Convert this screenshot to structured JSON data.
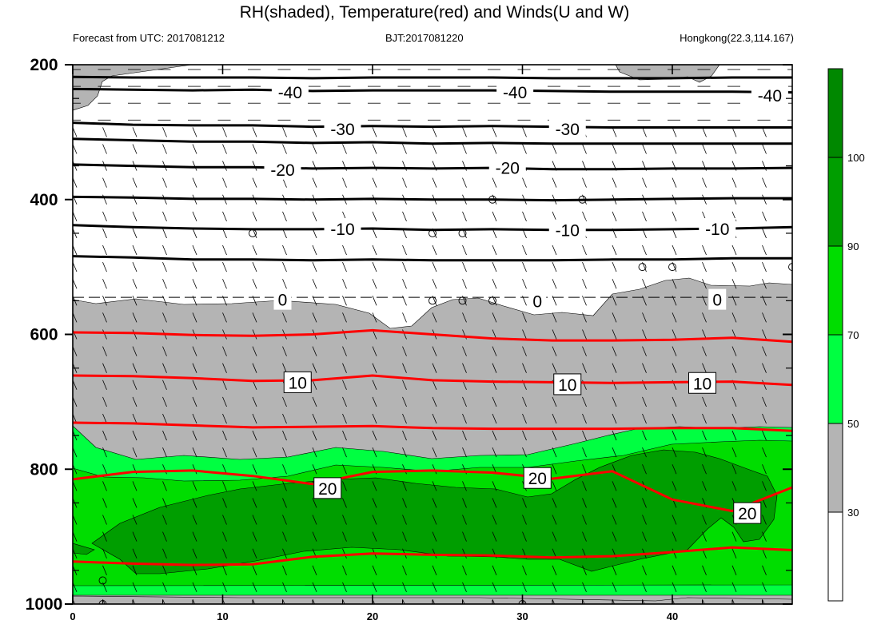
{
  "header": {
    "title": "RH(shaded), Temperature(red) and Winds(U and W)",
    "left_string": "Forecast from UTC: 2017081212",
    "center_string": "BJT:2017081220",
    "right_string": "Hongkong(22.3,114.167)"
  },
  "colors": {
    "temperature_warm": "#ff0000",
    "temperature_cold": "#000000",
    "rh_30_50": "#b4b4b4",
    "rh_50_70": "#00ff41",
    "rh_70_90": "#00dd00",
    "rh_90_100": "#009e00",
    "rh_100_plus": "#008800",
    "rh_below_30": "#ffffff"
  },
  "chart_data": {
    "type": "contour",
    "title": "RH(shaded), Temperature(red) and Winds(U and W)",
    "x_ticks": [
      0,
      10,
      20,
      30,
      40
    ],
    "xlim": [
      0,
      48
    ],
    "y_ticks": [
      200,
      400,
      600,
      800,
      1000
    ],
    "ylim": [
      1000,
      200
    ],
    "colorbar": {
      "levels": [
        30,
        50,
        70,
        90,
        100
      ],
      "colors": [
        "#ffffff",
        "#b4b4b4",
        "#00ff41",
        "#00dd00",
        "#009e00",
        "#008800"
      ]
    },
    "temperature_labels": [
      {
        "text": "-40",
        "x": 14.5,
        "p": 240
      },
      {
        "text": "-40",
        "x": 29.5,
        "p": 240
      },
      {
        "text": "-40",
        "x": 46.5,
        "p": 245
      },
      {
        "text": "-30",
        "x": 18,
        "p": 295
      },
      {
        "text": "-30",
        "x": 33,
        "p": 295
      },
      {
        "text": "-20",
        "x": 14,
        "p": 355
      },
      {
        "text": "-20",
        "x": 29,
        "p": 352
      },
      {
        "text": "-10",
        "x": 18,
        "p": 443
      },
      {
        "text": "-10",
        "x": 33,
        "p": 445
      },
      {
        "text": "-10",
        "x": 43,
        "p": 443
      },
      {
        "text": "0",
        "x": 14,
        "p": 548
      },
      {
        "text": "0",
        "x": 31,
        "p": 550
      },
      {
        "text": "0",
        "x": 43,
        "p": 548
      },
      {
        "text": "10",
        "x": 15,
        "p": 671
      },
      {
        "text": "10",
        "x": 33,
        "p": 674
      },
      {
        "text": "10",
        "x": 42,
        "p": 672
      },
      {
        "text": "20",
        "x": 17,
        "p": 828
      },
      {
        "text": "20",
        "x": 31,
        "p": 813
      },
      {
        "text": "20",
        "x": 45,
        "p": 865
      }
    ],
    "temperature_contours": [
      {
        "value": -40,
        "p": [
          218,
          219,
          219,
          219,
          220,
          219,
          219,
          219,
          220,
          220,
          220,
          219,
          219
        ]
      },
      {
        "value": -40,
        "p": [
          236,
          237,
          238,
          237,
          239,
          238,
          238,
          238,
          239,
          240,
          240,
          240,
          241
        ]
      },
      {
        "value": -30,
        "p": [
          286,
          289,
          290,
          290,
          292,
          291,
          292,
          291,
          292,
          293,
          293,
          293,
          293
        ]
      },
      {
        "value": -30,
        "p": [
          310,
          312,
          314,
          314,
          316,
          315,
          317,
          316,
          317,
          317,
          317,
          317,
          317
        ]
      },
      {
        "value": -20,
        "p": [
          348,
          350,
          352,
          352,
          354,
          353,
          354,
          353,
          355,
          355,
          354,
          354,
          353
        ]
      },
      {
        "value": -10,
        "p": [
          396,
          397,
          399,
          399,
          400,
          399,
          400,
          400,
          401,
          400,
          399,
          398,
          398
        ]
      },
      {
        "value": -10,
        "p": [
          438,
          441,
          443,
          444,
          444,
          443,
          445,
          444,
          445,
          445,
          444,
          443,
          441
        ]
      },
      {
        "value": -10,
        "p": [
          484,
          486,
          489,
          489,
          490,
          489,
          490,
          490,
          490,
          489,
          489,
          487,
          487
        ]
      },
      {
        "value": 10,
        "p": [
          597,
          598,
          601,
          602,
          600,
          594,
          600,
          606,
          609,
          609,
          608,
          605,
          611
        ]
      },
      {
        "value": 10,
        "p": [
          661,
          662,
          665,
          669,
          668,
          661,
          668,
          670,
          671,
          672,
          671,
          670,
          675
        ]
      },
      {
        "value": 10,
        "p": [
          731,
          732,
          735,
          738,
          737,
          736,
          739,
          740,
          740,
          740,
          739,
          739,
          743
        ]
      },
      {
        "value": 20,
        "p": [
          815,
          804,
          802,
          810,
          822,
          804,
          802,
          805,
          814,
          803,
          845,
          862,
          827
        ]
      },
      {
        "value": 20,
        "p": [
          937,
          940,
          942,
          941,
          930,
          925,
          927,
          928,
          931,
          929,
          923,
          916,
          920
        ]
      }
    ]
  }
}
